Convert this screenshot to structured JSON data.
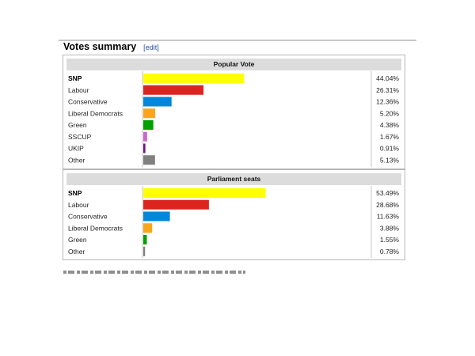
{
  "section": {
    "title": "Votes summary",
    "edit_link": "edit"
  },
  "chart_data": [
    {
      "type": "bar",
      "title": "Popular Vote",
      "categories": [
        "SNP",
        "Labour",
        "Conservative",
        "Liberal Democrats",
        "Green",
        "SSCUP",
        "UKIP",
        "Other"
      ],
      "values": [
        44.04,
        26.31,
        12.36,
        5.2,
        4.38,
        1.67,
        0.91,
        5.13
      ],
      "value_labels": [
        "44.04%",
        "26.31%",
        "12.36%",
        "5.20%",
        "4.38%",
        "1.67%",
        "0.91%",
        "5.13%"
      ],
      "colors": [
        "#ffff00",
        "#dc241f",
        "#0087dc",
        "#faa61a",
        "#00a000",
        "#cc66cc",
        "#70147a",
        "#808080"
      ],
      "bold_categories": [
        "SNP"
      ],
      "xlim": [
        0,
        100
      ],
      "unit": "%"
    },
    {
      "type": "bar",
      "title": "Parliament seats",
      "categories": [
        "SNP",
        "Labour",
        "Conservative",
        "Liberal Democrats",
        "Green",
        "Other"
      ],
      "values": [
        53.49,
        28.68,
        11.63,
        3.88,
        1.55,
        0.78
      ],
      "value_labels": [
        "53.49%",
        "28.68%",
        "11.63%",
        "3.88%",
        "1.55%",
        "0.78%"
      ],
      "colors": [
        "#ffff00",
        "#dc241f",
        "#0087dc",
        "#faa61a",
        "#00a000",
        "#808080"
      ],
      "bold_categories": [
        "SNP"
      ],
      "xlim": [
        0,
        100
      ],
      "unit": "%"
    }
  ]
}
